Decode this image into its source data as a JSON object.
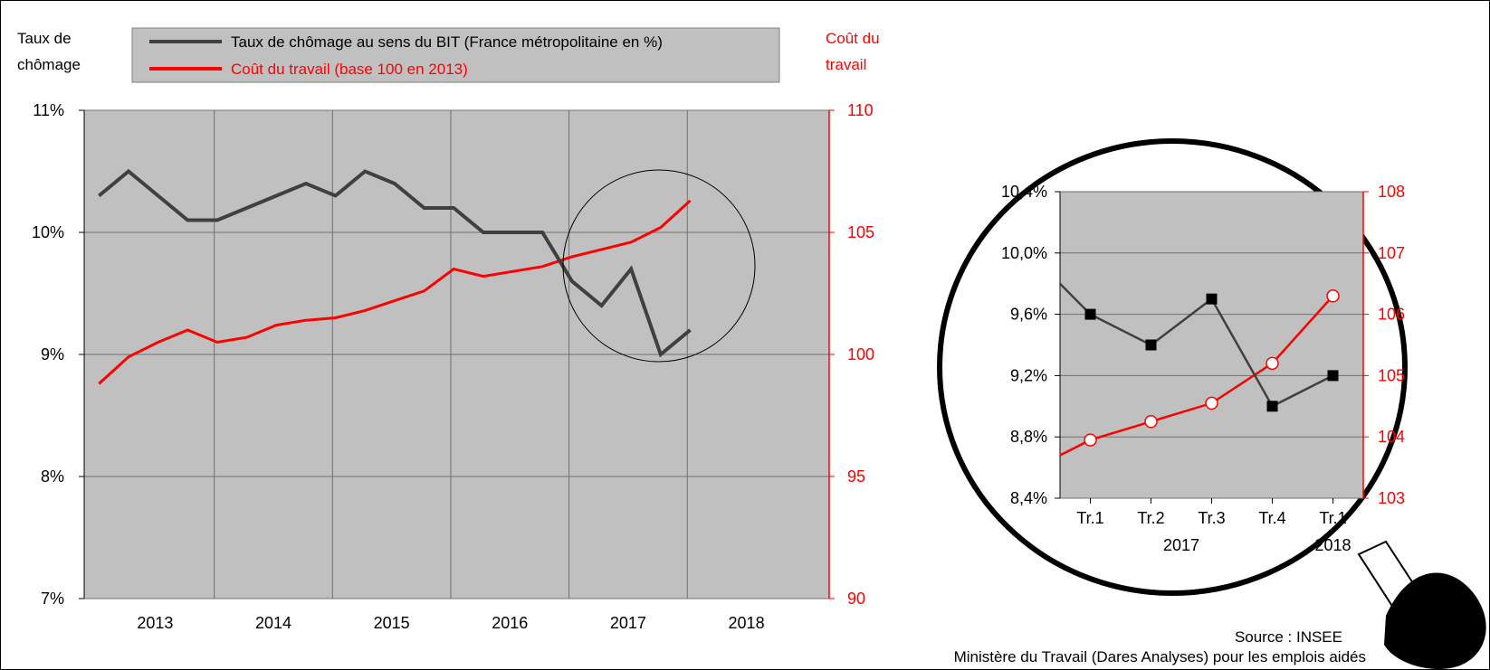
{
  "header": {
    "left_axis_title": [
      "Taux de",
      "chômage"
    ],
    "right_axis_title": [
      "Coût du",
      "travail"
    ]
  },
  "legend": {
    "position": "top",
    "entries": [
      {
        "label": "Taux de chômage au sens du BIT (France métropolitaine en %)",
        "color": "#404040"
      },
      {
        "label": "Coût du travail (base 100 en 2013)",
        "color": "#ff0000"
      }
    ]
  },
  "colors": {
    "unemployment": "#404040",
    "labour_cost": "#ff0000",
    "plot_bg": "#c0c0c0",
    "grid": "#707070"
  },
  "footer": {
    "source": "Source : INSEE",
    "credit": "Ministère du Travail (Dares Analyses) pour les emplois aidés"
  },
  "chart_data": [
    {
      "type": "line",
      "x_labels": [
        "2013",
        "2014",
        "2015",
        "2016",
        "2017",
        "2018"
      ],
      "x": [
        "2013-T1",
        "2013-T2",
        "2013-T3",
        "2013-T4",
        "2014-T1",
        "2014-T2",
        "2014-T3",
        "2014-T4",
        "2015-T1",
        "2015-T2",
        "2015-T3",
        "2015-T4",
        "2016-T1",
        "2016-T2",
        "2016-T3",
        "2016-T4",
        "2017-T1",
        "2017-T2",
        "2017-T3",
        "2017-T4",
        "2018-T1"
      ],
      "y_left": {
        "ticks": [
          "7%",
          "8%",
          "9%",
          "10%",
          "11%"
        ],
        "ylim": [
          7,
          11
        ]
      },
      "y_right": {
        "ticks": [
          "90",
          "95",
          "100",
          "105",
          "110"
        ],
        "ylim": [
          90,
          110
        ]
      },
      "grid": true,
      "highlight": "2017-T1 to 2018-T1 circled",
      "series": [
        {
          "name": "Taux de chômage au sens du BIT (France métropolitaine en %)",
          "axis": "left",
          "values": [
            10.3,
            10.5,
            10.3,
            10.1,
            10.1,
            10.2,
            10.3,
            10.4,
            10.3,
            10.5,
            10.4,
            10.2,
            10.2,
            10.0,
            10.0,
            10.0,
            9.6,
            9.4,
            9.7,
            9.0,
            9.2
          ]
        },
        {
          "name": "Coût du travail (base 100 en 2013)",
          "axis": "right",
          "values": [
            98.8,
            99.9,
            100.5,
            101.0,
            100.5,
            100.7,
            101.2,
            101.4,
            101.5,
            101.8,
            102.2,
            102.6,
            103.5,
            103.2,
            103.4,
            103.6,
            104.0,
            104.3,
            104.6,
            105.2,
            106.3
          ]
        }
      ]
    },
    {
      "type": "line",
      "x_labels": [
        "Tr.1",
        "Tr.2",
        "Tr.3",
        "Tr.4",
        "Tr.1"
      ],
      "x_group_labels": [
        "2017",
        "2018"
      ],
      "y_left": {
        "ticks": [
          "8,4%",
          "8,8%",
          "9,2%",
          "9,6%",
          "10,0%",
          "10,4%"
        ],
        "ylim": [
          8.4,
          10.4
        ]
      },
      "y_right": {
        "ticks": [
          "103",
          "104",
          "105",
          "106",
          "107",
          "108"
        ],
        "ylim": [
          103,
          108
        ]
      },
      "grid": true,
      "series": [
        {
          "axis": "left",
          "start": 9.8,
          "values": [
            9.6,
            9.4,
            9.7,
            9.0,
            9.2
          ]
        },
        {
          "axis": "right",
          "start": 103.7,
          "values": [
            103.95,
            104.25,
            104.55,
            105.2,
            106.3
          ]
        }
      ]
    }
  ]
}
